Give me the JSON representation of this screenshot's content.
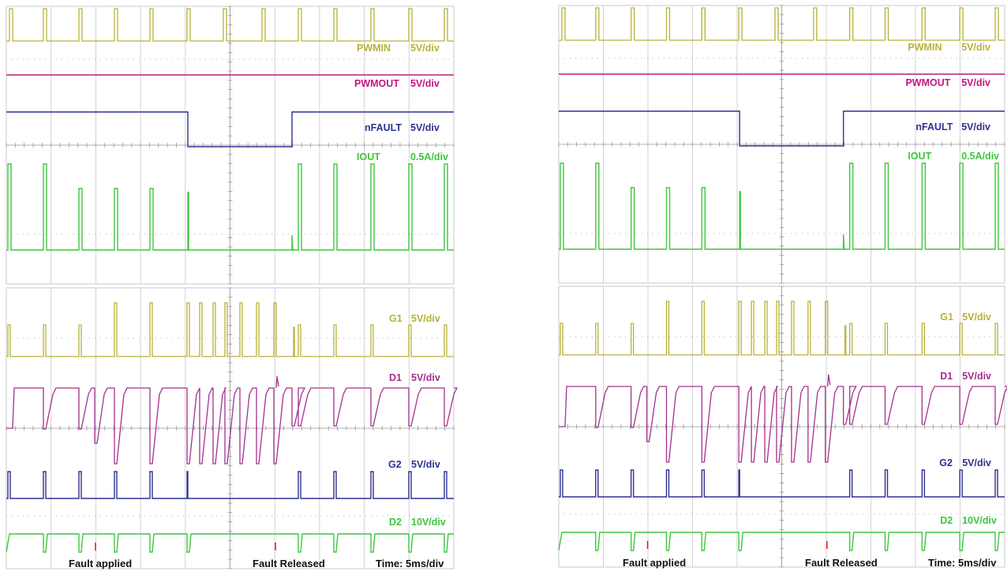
{
  "colors": {
    "yellow": "#b8b236",
    "magenta": "#c2187a",
    "navy": "#2e3192",
    "green": "#3fc63f",
    "violet": "#a4308e",
    "grid": "#c8c8c8",
    "dots": "#b0b0b0"
  },
  "annotations": {
    "fault_applied": "Fault applied",
    "fault_released": "Fault Released",
    "time": "Time: 5ms/div"
  },
  "chart_data": [
    {
      "type": "line",
      "name": "left-top",
      "traces": [
        {
          "label": "PWMIN",
          "scale": "5V/div",
          "color": "yellow"
        },
        {
          "label": "PWMOUT",
          "scale": "5V/div",
          "color": "magenta"
        },
        {
          "label": "nFAULT",
          "scale": "5V/div",
          "color": "navy"
        },
        {
          "label": "IOUT",
          "scale": "0.5A/div",
          "color": "green"
        }
      ]
    },
    {
      "type": "line",
      "name": "left-bottom",
      "traces": [
        {
          "label": "G1",
          "scale": "5V/div",
          "color": "yellow"
        },
        {
          "label": "D1",
          "scale": "5V/div",
          "color": "violet"
        },
        {
          "label": "G2",
          "scale": "5V/div",
          "color": "navy"
        },
        {
          "label": "D2",
          "scale": "10V/div",
          "color": "green"
        }
      ]
    },
    {
      "type": "line",
      "name": "right-top",
      "traces": [
        {
          "label": "PWMIN",
          "scale": "5V/div",
          "color": "yellow"
        },
        {
          "label": "PWMOUT",
          "scale": "5V/div",
          "color": "magenta"
        },
        {
          "label": "nFAULT",
          "scale": "5V/div",
          "color": "navy"
        },
        {
          "label": "IOUT",
          "scale": "0.5A/div",
          "color": "green"
        }
      ]
    },
    {
      "type": "line",
      "name": "right-bottom",
      "traces": [
        {
          "label": "G1",
          "scale": "5V/div",
          "color": "yellow"
        },
        {
          "label": "D1",
          "scale": "5V/div",
          "color": "violet"
        },
        {
          "label": "G2",
          "scale": "5V/div",
          "color": "navy"
        },
        {
          "label": "D2",
          "scale": "10V/div",
          "color": "green"
        }
      ]
    }
  ]
}
